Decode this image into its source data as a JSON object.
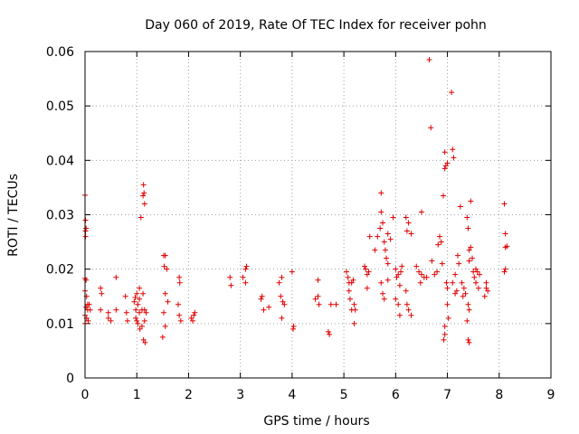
{
  "chart_data": {
    "type": "scatter",
    "title": "Day 060 of 2019, Rate Of TEC Index for receiver pohn",
    "xlabel": "GPS time / hours",
    "ylabel": "ROTI / TECUs",
    "xlim": [
      0,
      9
    ],
    "ylim": [
      0,
      0.06
    ],
    "xticks": [
      "0",
      "1",
      "2",
      "3",
      "4",
      "5",
      "6",
      "7",
      "8",
      "9"
    ],
    "yticks": [
      "0",
      "0.01",
      "0.02",
      "0.03",
      "0.04",
      "0.05",
      "0.06"
    ],
    "grid": true,
    "marker": "+",
    "color": "#e00000",
    "series": [
      {
        "name": "ROTI",
        "points": [
          [
            0.0,
            0.0336
          ],
          [
            0.01,
            0.029
          ],
          [
            0.01,
            0.027
          ],
          [
            0.01,
            0.026
          ],
          [
            0.02,
            0.0275
          ],
          [
            0.0,
            0.0183
          ],
          [
            0.02,
            0.018
          ],
          [
            0.0,
            0.016
          ],
          [
            0.03,
            0.015
          ],
          [
            0.02,
            0.013
          ],
          [
            0.05,
            0.0125
          ],
          [
            0.0,
            0.0115
          ],
          [
            0.03,
            0.011
          ],
          [
            0.0,
            0.01
          ],
          [
            0.06,
            0.0105
          ],
          [
            0.05,
            0.0135
          ],
          [
            0.1,
            0.0125
          ],
          [
            0.08,
            0.0135
          ],
          [
            0.3,
            0.0165
          ],
          [
            0.32,
            0.0155
          ],
          [
            0.3,
            0.0125
          ],
          [
            0.45,
            0.012
          ],
          [
            0.45,
            0.011
          ],
          [
            0.5,
            0.0105
          ],
          [
            0.6,
            0.0185
          ],
          [
            0.6,
            0.0125
          ],
          [
            0.78,
            0.015
          ],
          [
            0.8,
            0.012
          ],
          [
            0.82,
            0.0105
          ],
          [
            0.95,
            0.014
          ],
          [
            0.97,
            0.0148
          ],
          [
            0.98,
            0.0125
          ],
          [
            0.98,
            0.011
          ],
          [
            1.0,
            0.0105
          ],
          [
            1.0,
            0.0155
          ],
          [
            1.02,
            0.0135
          ],
          [
            1.02,
            0.01
          ],
          [
            1.05,
            0.0165
          ],
          [
            1.05,
            0.0145
          ],
          [
            1.05,
            0.012
          ],
          [
            1.06,
            0.009
          ],
          [
            1.08,
            0.0295
          ],
          [
            1.1,
            0.0125
          ],
          [
            1.1,
            0.0095
          ],
          [
            1.12,
            0.0335
          ],
          [
            1.13,
            0.0355
          ],
          [
            1.14,
            0.034
          ],
          [
            1.15,
            0.032
          ],
          [
            1.12,
            0.0155
          ],
          [
            1.15,
            0.0125
          ],
          [
            1.15,
            0.0105
          ],
          [
            1.13,
            0.007
          ],
          [
            1.16,
            0.0065
          ],
          [
            1.18,
            0.012
          ],
          [
            1.52,
            0.0225
          ],
          [
            1.53,
            0.0205
          ],
          [
            1.55,
            0.0225
          ],
          [
            1.58,
            0.02
          ],
          [
            1.55,
            0.0155
          ],
          [
            1.6,
            0.014
          ],
          [
            1.52,
            0.012
          ],
          [
            1.55,
            0.0095
          ],
          [
            1.5,
            0.0075
          ],
          [
            1.82,
            0.0185
          ],
          [
            1.83,
            0.0175
          ],
          [
            1.8,
            0.0135
          ],
          [
            1.82,
            0.0115
          ],
          [
            1.85,
            0.0105
          ],
          [
            2.05,
            0.011
          ],
          [
            2.1,
            0.0115
          ],
          [
            2.08,
            0.0105
          ],
          [
            2.12,
            0.012
          ],
          [
            2.8,
            0.0185
          ],
          [
            2.82,
            0.017
          ],
          [
            3.05,
            0.0185
          ],
          [
            3.1,
            0.0175
          ],
          [
            3.1,
            0.02
          ],
          [
            3.12,
            0.0205
          ],
          [
            3.4,
            0.0145
          ],
          [
            3.42,
            0.015
          ],
          [
            3.45,
            0.0125
          ],
          [
            3.55,
            0.013
          ],
          [
            3.75,
            0.0175
          ],
          [
            3.78,
            0.015
          ],
          [
            3.8,
            0.0185
          ],
          [
            3.82,
            0.014
          ],
          [
            3.85,
            0.0135
          ],
          [
            3.8,
            0.011
          ],
          [
            4.0,
            0.0195
          ],
          [
            4.02,
            0.009
          ],
          [
            4.03,
            0.0095
          ],
          [
            4.45,
            0.0145
          ],
          [
            4.5,
            0.018
          ],
          [
            4.5,
            0.015
          ],
          [
            4.52,
            0.0135
          ],
          [
            4.7,
            0.0085
          ],
          [
            4.72,
            0.008
          ],
          [
            4.75,
            0.0135
          ],
          [
            4.85,
            0.0135
          ],
          [
            5.05,
            0.0195
          ],
          [
            5.08,
            0.0185
          ],
          [
            5.1,
            0.016
          ],
          [
            5.1,
            0.0175
          ],
          [
            5.12,
            0.0145
          ],
          [
            5.15,
            0.0125
          ],
          [
            5.15,
            0.0175
          ],
          [
            5.18,
            0.018
          ],
          [
            5.2,
            0.0135
          ],
          [
            5.2,
            0.01
          ],
          [
            5.22,
            0.0125
          ],
          [
            5.4,
            0.0205
          ],
          [
            5.42,
            0.02
          ],
          [
            5.45,
            0.019
          ],
          [
            5.48,
            0.0195
          ],
          [
            5.45,
            0.0165
          ],
          [
            5.5,
            0.026
          ],
          [
            5.6,
            0.0235
          ],
          [
            5.65,
            0.026
          ],
          [
            5.7,
            0.0275
          ],
          [
            5.72,
            0.0305
          ],
          [
            5.72,
            0.034
          ],
          [
            5.75,
            0.0285
          ],
          [
            5.78,
            0.025
          ],
          [
            5.8,
            0.0235
          ],
          [
            5.82,
            0.022
          ],
          [
            5.85,
            0.021
          ],
          [
            5.85,
            0.0265
          ],
          [
            5.9,
            0.0255
          ],
          [
            5.72,
            0.0175
          ],
          [
            5.75,
            0.0155
          ],
          [
            5.78,
            0.0145
          ],
          [
            5.85,
            0.018
          ],
          [
            5.95,
            0.0295
          ],
          [
            6.0,
            0.02
          ],
          [
            6.02,
            0.0185
          ],
          [
            6.05,
            0.019
          ],
          [
            6.08,
            0.017
          ],
          [
            6.0,
            0.0145
          ],
          [
            6.05,
            0.0135
          ],
          [
            6.08,
            0.0115
          ],
          [
            6.1,
            0.0195
          ],
          [
            6.12,
            0.0205
          ],
          [
            6.2,
            0.0295
          ],
          [
            6.22,
            0.027
          ],
          [
            6.25,
            0.0285
          ],
          [
            6.3,
            0.0265
          ],
          [
            6.2,
            0.016
          ],
          [
            6.22,
            0.0135
          ],
          [
            6.25,
            0.0125
          ],
          [
            6.3,
            0.0115
          ],
          [
            6.4,
            0.0205
          ],
          [
            6.45,
            0.0195
          ],
          [
            6.48,
            0.0175
          ],
          [
            6.5,
            0.019
          ],
          [
            6.5,
            0.0305
          ],
          [
            6.55,
            0.0185
          ],
          [
            6.6,
            0.0185
          ],
          [
            6.65,
            0.0585
          ],
          [
            6.68,
            0.046
          ],
          [
            6.7,
            0.0215
          ],
          [
            6.75,
            0.019
          ],
          [
            6.8,
            0.0195
          ],
          [
            6.82,
            0.0245
          ],
          [
            6.85,
            0.026
          ],
          [
            6.88,
            0.025
          ],
          [
            6.9,
            0.021
          ],
          [
            6.92,
            0.0335
          ],
          [
            6.95,
            0.0385
          ],
          [
            6.95,
            0.0415
          ],
          [
            6.97,
            0.039
          ],
          [
            7.0,
            0.0395
          ],
          [
            6.98,
            0.0175
          ],
          [
            7.0,
            0.0165
          ],
          [
            7.0,
            0.0135
          ],
          [
            7.02,
            0.011
          ],
          [
            6.95,
            0.0095
          ],
          [
            6.93,
            0.007
          ],
          [
            6.95,
            0.008
          ],
          [
            7.08,
            0.0525
          ],
          [
            7.1,
            0.042
          ],
          [
            7.12,
            0.0405
          ],
          [
            7.1,
            0.0175
          ],
          [
            7.15,
            0.019
          ],
          [
            7.15,
            0.0155
          ],
          [
            7.18,
            0.016
          ],
          [
            7.2,
            0.0225
          ],
          [
            7.22,
            0.021
          ],
          [
            7.25,
            0.0315
          ],
          [
            7.28,
            0.0175
          ],
          [
            7.3,
            0.015
          ],
          [
            7.32,
            0.0165
          ],
          [
            7.35,
            0.0155
          ],
          [
            7.38,
            0.0295
          ],
          [
            7.4,
            0.0275
          ],
          [
            7.42,
            0.0235
          ],
          [
            7.42,
            0.0215
          ],
          [
            7.45,
            0.0325
          ],
          [
            7.45,
            0.024
          ],
          [
            7.48,
            0.022
          ],
          [
            7.4,
            0.0135
          ],
          [
            7.42,
            0.0125
          ],
          [
            7.38,
            0.0105
          ],
          [
            7.4,
            0.007
          ],
          [
            7.42,
            0.0065
          ],
          [
            7.5,
            0.0195
          ],
          [
            7.52,
            0.0185
          ],
          [
            7.55,
            0.02
          ],
          [
            7.58,
            0.0195
          ],
          [
            7.55,
            0.0175
          ],
          [
            7.6,
            0.0165
          ],
          [
            7.62,
            0.019
          ],
          [
            7.75,
            0.0175
          ],
          [
            7.75,
            0.0165
          ],
          [
            7.78,
            0.016
          ],
          [
            7.72,
            0.015
          ],
          [
            8.1,
            0.032
          ],
          [
            8.12,
            0.0265
          ],
          [
            8.12,
            0.024
          ],
          [
            8.15,
            0.0242
          ],
          [
            8.1,
            0.0195
          ],
          [
            8.12,
            0.02
          ]
        ]
      }
    ]
  }
}
